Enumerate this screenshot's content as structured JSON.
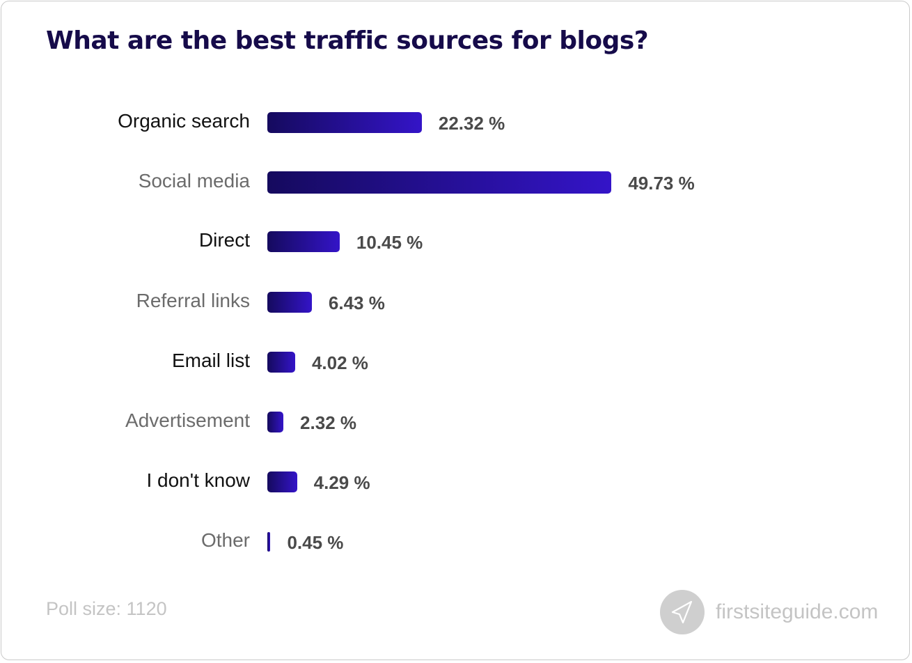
{
  "title": "What are the best traffic sources for blogs?",
  "footer": {
    "poll_size": "Poll size: 1120",
    "brand": "firstsiteguide.com",
    "brand_icon": "paper-plane-icon"
  },
  "colors": {
    "title": "#160b4a",
    "bar_start": "#150a5e",
    "bar_end": "#3414c8",
    "value_text": "#4a4a4a"
  },
  "rows": [
    {
      "label": "Organic search",
      "value": "22.32 %"
    },
    {
      "label": "Social media",
      "value": "49.73 %"
    },
    {
      "label": "Direct",
      "value": "10.45 %"
    },
    {
      "label": "Referral links",
      "value": "6.43 %"
    },
    {
      "label": "Email list",
      "value": "4.02 %"
    },
    {
      "label": "Advertisement",
      "value": "2.32 %"
    },
    {
      "label": "I don't know",
      "value": "4.29 %"
    },
    {
      "label": "Other",
      "value": "0.45 %"
    }
  ],
  "chart_data": {
    "type": "bar",
    "orientation": "horizontal",
    "title": "What are the best traffic sources for blogs?",
    "categories": [
      "Organic search",
      "Social media",
      "Direct",
      "Referral links",
      "Email list",
      "Advertisement",
      "I don't know",
      "Other"
    ],
    "values": [
      22.32,
      49.73,
      10.45,
      6.43,
      4.02,
      2.32,
      4.29,
      0.45
    ],
    "unit": "%",
    "xlabel": "",
    "ylabel": "",
    "grid": false,
    "legend": null,
    "data_labels": true,
    "annotations": [
      "Poll size: 1120",
      "firstsiteguide.com"
    ]
  }
}
